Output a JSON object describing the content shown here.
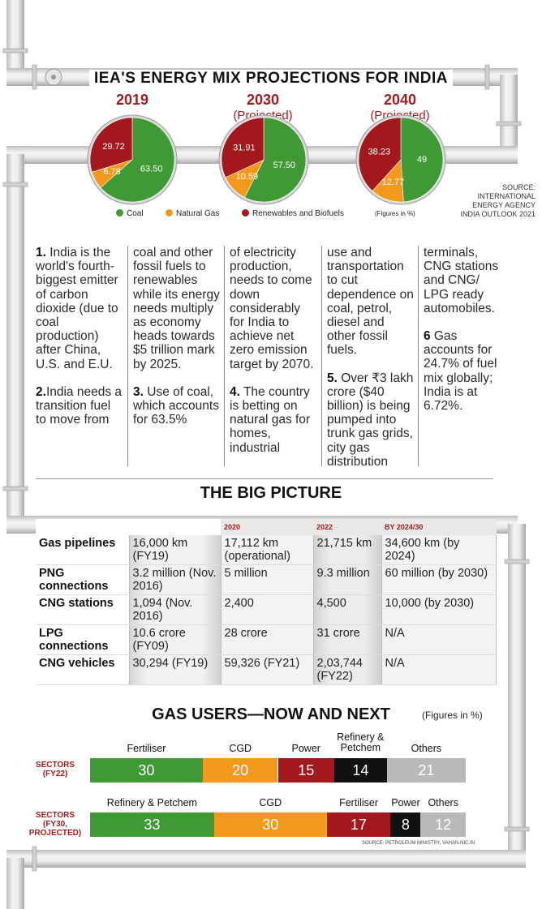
{
  "title": "IEA'S ENERGY MIX PROJECTIONS FOR INDIA",
  "mix_years": [
    {
      "year": "2019",
      "note": ""
    },
    {
      "year": "2030",
      "note": "(Projected)"
    },
    {
      "year": "2040",
      "note": "(Projected)"
    }
  ],
  "legend": [
    "Coal",
    "Natural Gas",
    "Renewables and Biofuels"
  ],
  "figures_note": "(Figures in %)",
  "source": [
    "SOURCE:",
    "INTERNATIONAL",
    "ENERGY AGENCY",
    "INDIA OUTLOOK 2021"
  ],
  "colors": {
    "coal": "#3f9a35",
    "gas": "#f39a1e",
    "renew": "#a3181d",
    "black": "#111111",
    "grey": "#b9b9b9",
    "accent": "#a11d1d"
  },
  "paragraphs": [
    {
      "num": "1.",
      "text": " India is the world's fourth-biggest emitter of carbon dioxide (due to coal production) after China, U.S. and E.U."
    },
    {
      "num": "2.",
      "text": "India needs a transition fuel to move from coal and other fossil fuels to renewables while its energy needs multiply as economy heads towards $5 trillion mark by 2025."
    },
    {
      "num": "3.",
      "text": " Use of coal, which accounts for 63.5% of electricity production, needs to come down considerably for India to achieve net zero emission target by 2070."
    },
    {
      "num": "4.",
      "text": " The country is betting on natural gas for homes, industrial use and transportation to cut dependence on coal, petrol, diesel and other fossil fuels."
    },
    {
      "num": "5.",
      "text": " Over ₹3 lakh crore ($40 billion) is being pumped into trunk gas grids, city gas distribution networks, LNG terminals, CNG stations and CNG/ LPG ready automobiles."
    },
    {
      "num": "6",
      "text": " Gas accounts for 24.7% of fuel mix globally; India is at 6.72%."
    }
  ],
  "big_picture": {
    "title": "THE BIG PICTURE",
    "headers": [
      "",
      "",
      "2020",
      "2022",
      "BY 2024/30"
    ],
    "rows": [
      [
        "Gas pipelines",
        "16,000 km (FY19)",
        "17,112 km (operational)",
        "21,715 km",
        "34,600 km (by 2024)"
      ],
      [
        "PNG connections",
        "3.2 million (Nov. 2016)",
        "5 million",
        "9.3 million",
        "60 million (by 2030)"
      ],
      [
        "CNG stations",
        "1,094 (Nov. 2016)",
        "2,400",
        "4,500",
        "10,000 (by 2030)"
      ],
      [
        "LPG connections",
        "10.6 crore (FY09)",
        "28 crore",
        "31 crore",
        "N/A"
      ],
      [
        "CNG  vehicles",
        "30,294  (FY19)",
        "59,326 (FY21)",
        "2,03,744 (FY22)",
        "N/A"
      ]
    ]
  },
  "gas_users": {
    "title": "GAS USERS—NOW AND NEXT",
    "figures_note": "(Figures in %)",
    "source": "SOURCE: PETROLEUM MINISTRY, VAHAN.NIC.IN"
  },
  "chart_data": [
    {
      "type": "pie",
      "title": "2019",
      "labels": [
        "Coal",
        "Natural Gas",
        "Renewables and Biofuels"
      ],
      "values": [
        63.5,
        6.78,
        29.72
      ],
      "value_labels": [
        "63.50",
        "6.78",
        "29.72"
      ]
    },
    {
      "type": "pie",
      "title": "2030 (Projected)",
      "labels": [
        "Coal",
        "Natural Gas",
        "Renewables and Biofuels"
      ],
      "values": [
        57.5,
        10.59,
        31.91
      ],
      "value_labels": [
        "57.50",
        "10.59",
        "31.91"
      ]
    },
    {
      "type": "pie",
      "title": "2040 (Projected)",
      "labels": [
        "Coal",
        "Natural Gas",
        "Renewables and Biofuels"
      ],
      "values": [
        49,
        12.77,
        38.23
      ],
      "value_labels": [
        "49",
        "12.77",
        "38.23"
      ]
    },
    {
      "type": "bar",
      "stacked": true,
      "orientation": "horizontal",
      "title": "SECTORS (FY22)",
      "categories": [
        "Fertiliser",
        "CGD",
        "Power",
        "Refinery & Petchem",
        "Others"
      ],
      "values": [
        30,
        20,
        15,
        14,
        21
      ],
      "colors": [
        "#3f9a35",
        "#f39a1e",
        "#a3181d",
        "#111111",
        "#b9b9b9"
      ]
    },
    {
      "type": "bar",
      "stacked": true,
      "orientation": "horizontal",
      "title": "SECTORS (FY30, PROJECTED)",
      "categories": [
        "Refinery & Petchem",
        "CGD",
        "Fertiliser",
        "Power",
        "Others"
      ],
      "values": [
        33,
        30,
        17,
        8,
        12
      ],
      "colors": [
        "#3f9a35",
        "#f39a1e",
        "#a3181d",
        "#111111",
        "#b9b9b9"
      ]
    }
  ]
}
